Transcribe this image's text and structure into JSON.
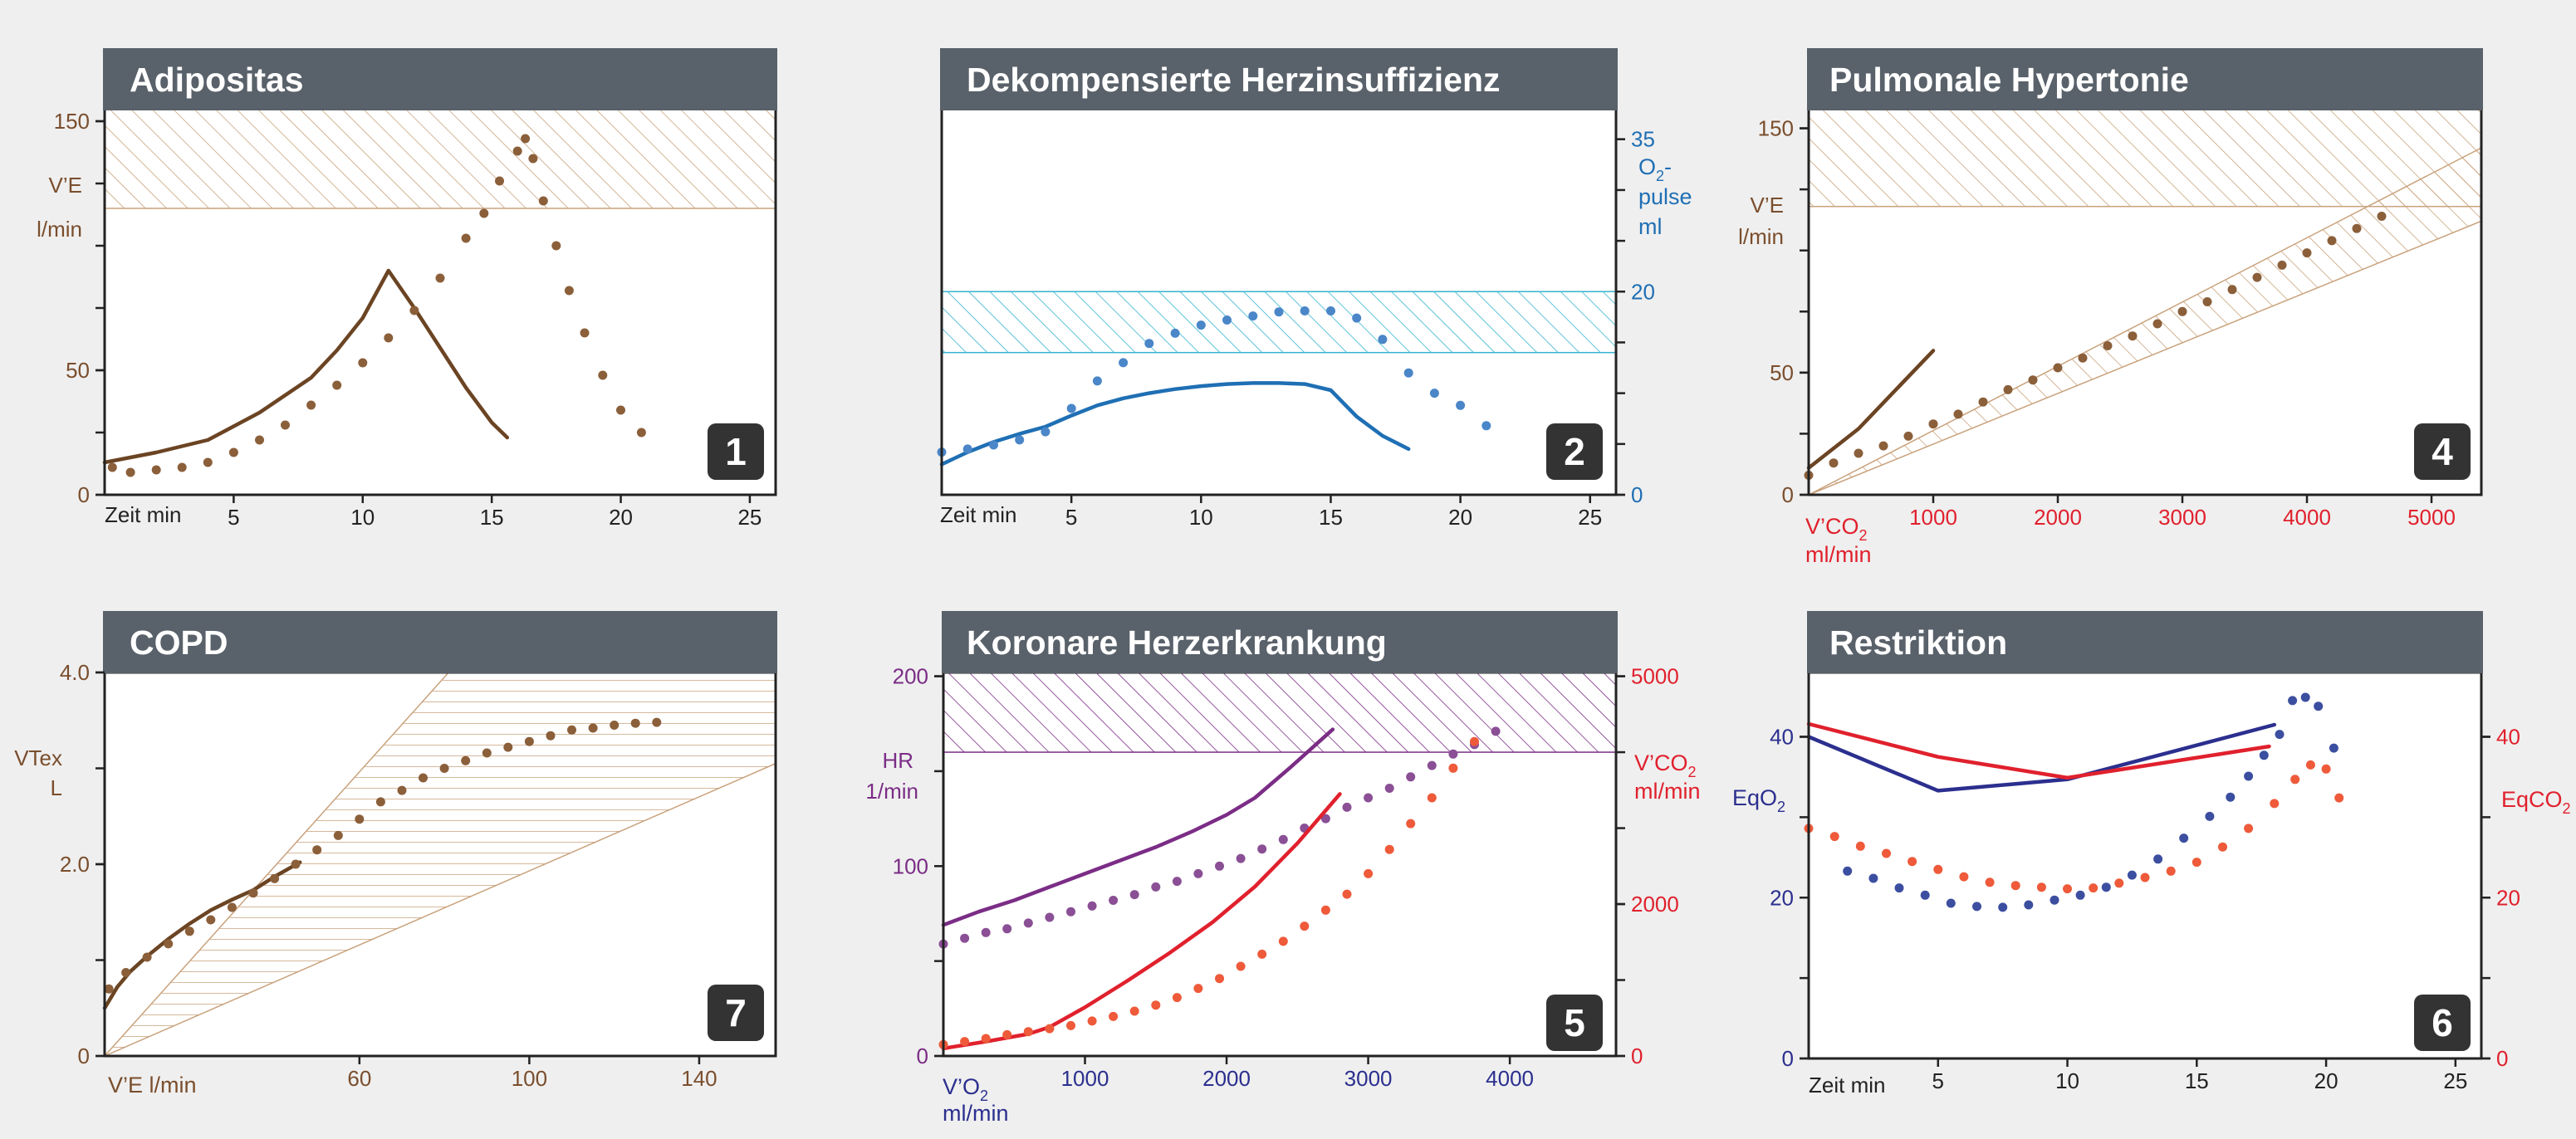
{
  "colors": {
    "background": "#efefef",
    "header": "#59616a",
    "header_text": "#ffffff",
    "badge": "#333333",
    "brown": "#6b4423",
    "brown_dot": "#8a5f3a",
    "brown_label": "#7a4e2d",
    "blue": "#1f6fb4",
    "blue_dot": "#4a86c8",
    "cyan_hatch": "#35b4cf",
    "purple": "#7b2d86",
    "purple_dot": "#8a4f95",
    "red": "#e0212d",
    "red_dot": "#ee5a3a",
    "navy": "#2b2f8e",
    "navy_dot": "#3c4ea0",
    "tan": "#c9a27c"
  },
  "chart_data": [
    {
      "type": "line",
      "title": "Adipositas",
      "badge": "1",
      "xlabel": "Zeit min",
      "ylabel": [
        "V’E",
        "l/min"
      ],
      "xlim": [
        0,
        26
      ],
      "ylim": [
        0,
        155
      ],
      "xticks": [
        "5",
        "10",
        "15",
        "20",
        "25"
      ],
      "yticks": [
        "0",
        "50",
        "150"
      ],
      "hatched_band": {
        "y_from": 115,
        "y_to": 155,
        "x_from": 0,
        "x_to": 26
      },
      "series": [
        {
          "style": "line",
          "x": [
            0,
            2,
            4,
            6,
            8,
            9,
            10,
            11,
            12,
            13,
            14,
            15,
            15.6
          ],
          "y": [
            13,
            17,
            22,
            33,
            47,
            58,
            71,
            90,
            75,
            59,
            43,
            29,
            23
          ]
        },
        {
          "style": "dots",
          "x": [
            0.3,
            1,
            2,
            3,
            4,
            5,
            6,
            7,
            8,
            9,
            10,
            11,
            12,
            13,
            14,
            14.7,
            15.3,
            16,
            16.3,
            16.6,
            17,
            17.5,
            18,
            18.6,
            19.3,
            20,
            20.8
          ],
          "y": [
            11,
            9,
            10,
            11,
            13,
            17,
            22,
            28,
            36,
            44,
            53,
            63,
            74,
            87,
            103,
            113,
            126,
            138,
            143,
            135,
            118,
            100,
            82,
            65,
            48,
            34,
            25
          ]
        }
      ]
    },
    {
      "type": "line",
      "title": "Dekompensierte Herzinsuffizienz",
      "badge": "2",
      "xlabel": "Zeit min",
      "y2label": [
        "O",
        "2",
        "-",
        "pulse",
        "ml"
      ],
      "xlim": [
        0,
        26
      ],
      "y2lim": [
        0,
        38
      ],
      "xticks": [
        "5",
        "10",
        "15",
        "20",
        "25"
      ],
      "y2ticks": [
        "0",
        "20",
        "35"
      ],
      "hatched_band": {
        "y_from": 14,
        "y_to": 20,
        "x_from": 0,
        "x_to": 26
      },
      "series": [
        {
          "style": "line",
          "x": [
            0,
            1,
            2,
            3,
            4,
            5,
            6,
            7,
            8,
            9,
            10,
            11,
            12,
            13,
            14,
            15,
            16,
            17,
            18
          ],
          "y": [
            3,
            4.2,
            5.2,
            6,
            6.7,
            7.8,
            8.8,
            9.5,
            10,
            10.4,
            10.7,
            10.9,
            11.0,
            11.0,
            10.9,
            10.3,
            7.7,
            5.8,
            4.5
          ]
        },
        {
          "style": "dots",
          "x": [
            0,
            1,
            2,
            3,
            4,
            5,
            6,
            7,
            8,
            9,
            10,
            11,
            12,
            13,
            14,
            15,
            16,
            17,
            18,
            19,
            20,
            21
          ],
          "y": [
            4.2,
            4.5,
            4.9,
            5.4,
            6.2,
            8.5,
            11.2,
            13.0,
            14.9,
            15.9,
            16.7,
            17.2,
            17.6,
            18.0,
            18.1,
            18.1,
            17.4,
            15.3,
            12.0,
            10.0,
            8.8,
            6.8
          ]
        }
      ]
    },
    {
      "type": "scatter",
      "title": "Pulmonale Hypertonie",
      "badge": "4",
      "xlabel": [
        "V’CO",
        "2",
        "ml/min"
      ],
      "ylabel": [
        "V’E",
        "l/min"
      ],
      "xlim": [
        0,
        5400
      ],
      "ylim": [
        0,
        158
      ],
      "xticks": [
        "1000",
        "2000",
        "3000",
        "4000",
        "5000"
      ],
      "yticks": [
        "0",
        "50",
        "150"
      ],
      "hatched_band": {
        "y_from": 118,
        "y_to": 158,
        "x_from": 0,
        "x_to": 5400
      },
      "hatched_wedge": {
        "origin": [
          0,
          0
        ],
        "upper_end": [
          5400,
          142
        ],
        "lower_end": [
          5400,
          112
        ]
      },
      "series": [
        {
          "style": "line",
          "x": [
            0,
            400,
            1000
          ],
          "y": [
            11,
            27,
            59
          ]
        },
        {
          "style": "dots",
          "x": [
            0,
            200,
            400,
            600,
            800,
            1000,
            1200,
            1400,
            1600,
            1800,
            2000,
            2200,
            2400,
            2600,
            2800,
            3000,
            3200,
            3400,
            3600,
            3800,
            4000,
            4200,
            4400,
            4600
          ],
          "y": [
            8,
            13,
            17,
            20,
            24,
            29,
            33,
            38,
            43,
            47,
            52,
            56,
            61,
            65,
            70,
            75,
            79,
            84,
            89,
            94,
            99,
            104,
            109,
            114
          ]
        }
      ]
    },
    {
      "type": "scatter",
      "title": "COPD",
      "badge": "7",
      "xlabel": "V’E l/min",
      "ylabel": [
        "VTex",
        "L"
      ],
      "xlim": [
        0,
        158
      ],
      "ylim": [
        0,
        4.0
      ],
      "xticks": [
        "60",
        "100",
        "140"
      ],
      "yticks": [
        "0",
        "2.0",
        "4.0"
      ],
      "hatched_wedge": {
        "origin": [
          0,
          0
        ],
        "upper_end": [
          81,
          4.0
        ],
        "lower_end": [
          158,
          3.05
        ]
      },
      "series": [
        {
          "style": "line",
          "x": [
            0,
            3,
            6,
            10,
            15,
            20,
            25,
            30,
            35,
            40,
            46
          ],
          "y": [
            0.5,
            0.72,
            0.88,
            1.04,
            1.22,
            1.38,
            1.52,
            1.63,
            1.73,
            1.87,
            2.02
          ]
        },
        {
          "style": "dots",
          "x": [
            1,
            5,
            10,
            15,
            20,
            25,
            30,
            35,
            40,
            45,
            50,
            55,
            60,
            65,
            70,
            75,
            80,
            85,
            90,
            95,
            100,
            105,
            110,
            115,
            120,
            125,
            130
          ],
          "y": [
            0.7,
            0.87,
            1.03,
            1.17,
            1.3,
            1.42,
            1.55,
            1.7,
            1.85,
            2.0,
            2.15,
            2.3,
            2.47,
            2.65,
            2.77,
            2.9,
            3.0,
            3.08,
            3.16,
            3.22,
            3.28,
            3.34,
            3.4,
            3.42,
            3.45,
            3.47,
            3.48
          ]
        }
      ]
    },
    {
      "type": "line",
      "title": "Koronare Herzerkrankung",
      "badge": "5",
      "xlabel": [
        "V’O",
        "2",
        "ml/min"
      ],
      "ylabel": [
        "HR",
        "1/min"
      ],
      "y2label": [
        "V’CO",
        "2",
        "ml/min"
      ],
      "xlim": [
        0,
        4750
      ],
      "ylim": [
        0,
        202
      ],
      "y2lim": [
        0,
        5050
      ],
      "xticks": [
        "1000",
        "2000",
        "3000",
        "4000"
      ],
      "yticks": [
        "0",
        "100",
        "200"
      ],
      "y2ticks": [
        "0",
        "2000",
        "5000"
      ],
      "hatched_band": {
        "y_from": 160,
        "y_to": 202,
        "x_from": 0,
        "x_to": 4750
      },
      "series": [
        {
          "style": "line",
          "axis": "left",
          "color": "purple",
          "x": [
            0,
            250,
            500,
            750,
            1000,
            1250,
            1500,
            1750,
            2000,
            2200,
            2450,
            2750
          ],
          "y": [
            69,
            76,
            82,
            89,
            96,
            103,
            110,
            118,
            127,
            136,
            152,
            172
          ]
        },
        {
          "style": "dots",
          "axis": "left",
          "color": "purple",
          "x": [
            0,
            150,
            300,
            450,
            600,
            750,
            900,
            1050,
            1200,
            1350,
            1500,
            1650,
            1800,
            1950,
            2100,
            2250,
            2400,
            2550,
            2700,
            2850,
            3000,
            3150,
            3300,
            3450,
            3600,
            3750,
            3900
          ],
          "y": [
            59,
            62,
            65,
            67,
            70,
            73,
            76,
            79,
            82,
            85,
            89,
            92,
            96,
            100,
            104,
            109,
            114,
            120,
            125,
            131,
            136,
            141,
            147,
            153,
            159,
            164,
            171
          ]
        },
        {
          "style": "line",
          "axis": "right",
          "color": "red",
          "x": [
            0,
            300,
            600,
            750,
            1000,
            1300,
            1600,
            1900,
            2200,
            2500,
            2800
          ],
          "y": [
            100,
            190,
            290,
            380,
            640,
            990,
            1360,
            1760,
            2230,
            2800,
            3450
          ]
        },
        {
          "style": "dots",
          "axis": "right",
          "color": "red",
          "x": [
            0,
            150,
            300,
            450,
            600,
            750,
            900,
            1050,
            1200,
            1350,
            1500,
            1650,
            1800,
            1950,
            2100,
            2250,
            2400,
            2550,
            2700,
            2850,
            3000,
            3150,
            3300,
            3450,
            3600,
            3750
          ],
          "y": [
            150,
            190,
            230,
            280,
            320,
            360,
            400,
            460,
            520,
            590,
            670,
            770,
            890,
            1020,
            1180,
            1340,
            1510,
            1710,
            1920,
            2130,
            2400,
            2720,
            3060,
            3400,
            3790,
            4140
          ]
        }
      ]
    },
    {
      "type": "line",
      "title": "Restriktion",
      "badge": "6",
      "xlabel": "Zeit min",
      "ylabel": [
        "EqO",
        "2"
      ],
      "y2label": [
        "EqCO",
        "2"
      ],
      "xlim": [
        0,
        26
      ],
      "ylim": [
        0,
        48
      ],
      "xticks": [
        "5",
        "10",
        "15",
        "20",
        "25"
      ],
      "yticks": [
        "0",
        "20",
        "40"
      ],
      "y2ticks": [
        "0",
        "20",
        "40"
      ],
      "series": [
        {
          "style": "line",
          "color": "navy",
          "x": [
            0,
            5,
            10,
            18
          ],
          "y": [
            40,
            33.3,
            34.7,
            41.5
          ]
        },
        {
          "style": "line",
          "color": "red",
          "x": [
            0,
            5,
            10,
            17.8
          ],
          "y": [
            41.6,
            37.5,
            34.9,
            38.8
          ]
        },
        {
          "style": "dots",
          "color": "navy",
          "x": [
            1.5,
            2.5,
            3.5,
            4.5,
            5.5,
            6.5,
            7.5,
            8.5,
            9.5,
            10.5,
            11.5,
            12.5,
            13.5,
            14.5,
            15.5,
            16.3,
            17.0,
            17.6,
            18.2,
            18.7,
            19.2,
            19.7,
            20.3
          ],
          "y": [
            23.3,
            22.4,
            21.2,
            20.3,
            19.3,
            18.9,
            18.8,
            19.1,
            19.7,
            20.3,
            21.3,
            22.8,
            24.8,
            27.4,
            30.1,
            32.5,
            35.1,
            37.7,
            40.3,
            44.5,
            44.9,
            43.8,
            38.6
          ]
        },
        {
          "style": "dots",
          "color": "red",
          "x": [
            0,
            1,
            2,
            3,
            4,
            5,
            6,
            7,
            8,
            9,
            10,
            11,
            12,
            13,
            14,
            15,
            16,
            17,
            18,
            18.8,
            19.4,
            20.0,
            20.5
          ],
          "y": [
            28.6,
            27.6,
            26.4,
            25.5,
            24.5,
            23.5,
            22.6,
            21.9,
            21.5,
            21.3,
            21.1,
            21.2,
            21.8,
            22.5,
            23.3,
            24.4,
            26.3,
            28.6,
            31.7,
            34.7,
            36.5,
            36.0,
            32.4
          ]
        }
      ]
    }
  ]
}
